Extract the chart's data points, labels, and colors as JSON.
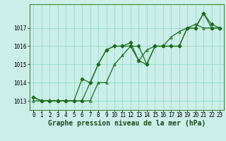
{
  "xlabel": "Graphe pression niveau de la mer (hPa)",
  "ylim": [
    1012.5,
    1018.3
  ],
  "xlim": [
    -0.5,
    23.5
  ],
  "bg_color": "#cceee8",
  "grid_color": "#99ddcc",
  "line_color": "#1a6e1a",
  "series": [
    [
      1013.2,
      1013.0,
      1013.0,
      1013.0,
      1013.0,
      1013.0,
      1014.2,
      1014.0,
      1015.0,
      1015.8,
      1016.0,
      1016.0,
      1016.0,
      1016.0,
      1015.0,
      1016.0,
      1016.0,
      1016.0,
      1016.0,
      1017.0,
      1017.0,
      1017.8,
      1017.0,
      1017.0
    ],
    [
      1013.2,
      1013.0,
      1013.0,
      1013.0,
      1013.0,
      1013.0,
      1013.0,
      1014.0,
      1015.0,
      1015.8,
      1016.0,
      1016.0,
      1016.2,
      1015.2,
      1015.0,
      1016.0,
      1016.0,
      1016.0,
      1016.0,
      1017.0,
      1017.0,
      1017.8,
      1017.2,
      1017.0
    ],
    [
      1013.0,
      1013.0,
      1013.0,
      1013.0,
      1013.0,
      1013.0,
      1013.0,
      1013.0,
      1014.0,
      1014.0,
      1015.0,
      1015.5,
      1016.0,
      1015.2,
      1015.8,
      1016.0,
      1016.0,
      1016.5,
      1016.8,
      1017.0,
      1017.2,
      1017.0,
      1017.0,
      1017.0
    ]
  ],
  "markers": [
    "D",
    "D",
    "^"
  ],
  "markersizes": [
    2.5,
    2.5,
    2.5
  ],
  "linewidths": [
    0.9,
    0.9,
    0.9
  ],
  "xtick_labels": [
    "0",
    "1",
    "2",
    "3",
    "4",
    "5",
    "6",
    "7",
    "8",
    "9",
    "10",
    "11",
    "12",
    "13",
    "14",
    "15",
    "16",
    "17",
    "18",
    "19",
    "20",
    "21",
    "22",
    "23"
  ],
  "yticks": [
    1013,
    1014,
    1015,
    1016,
    1017
  ],
  "tick_fontsize": 5.5,
  "xlabel_fontsize": 7.0
}
